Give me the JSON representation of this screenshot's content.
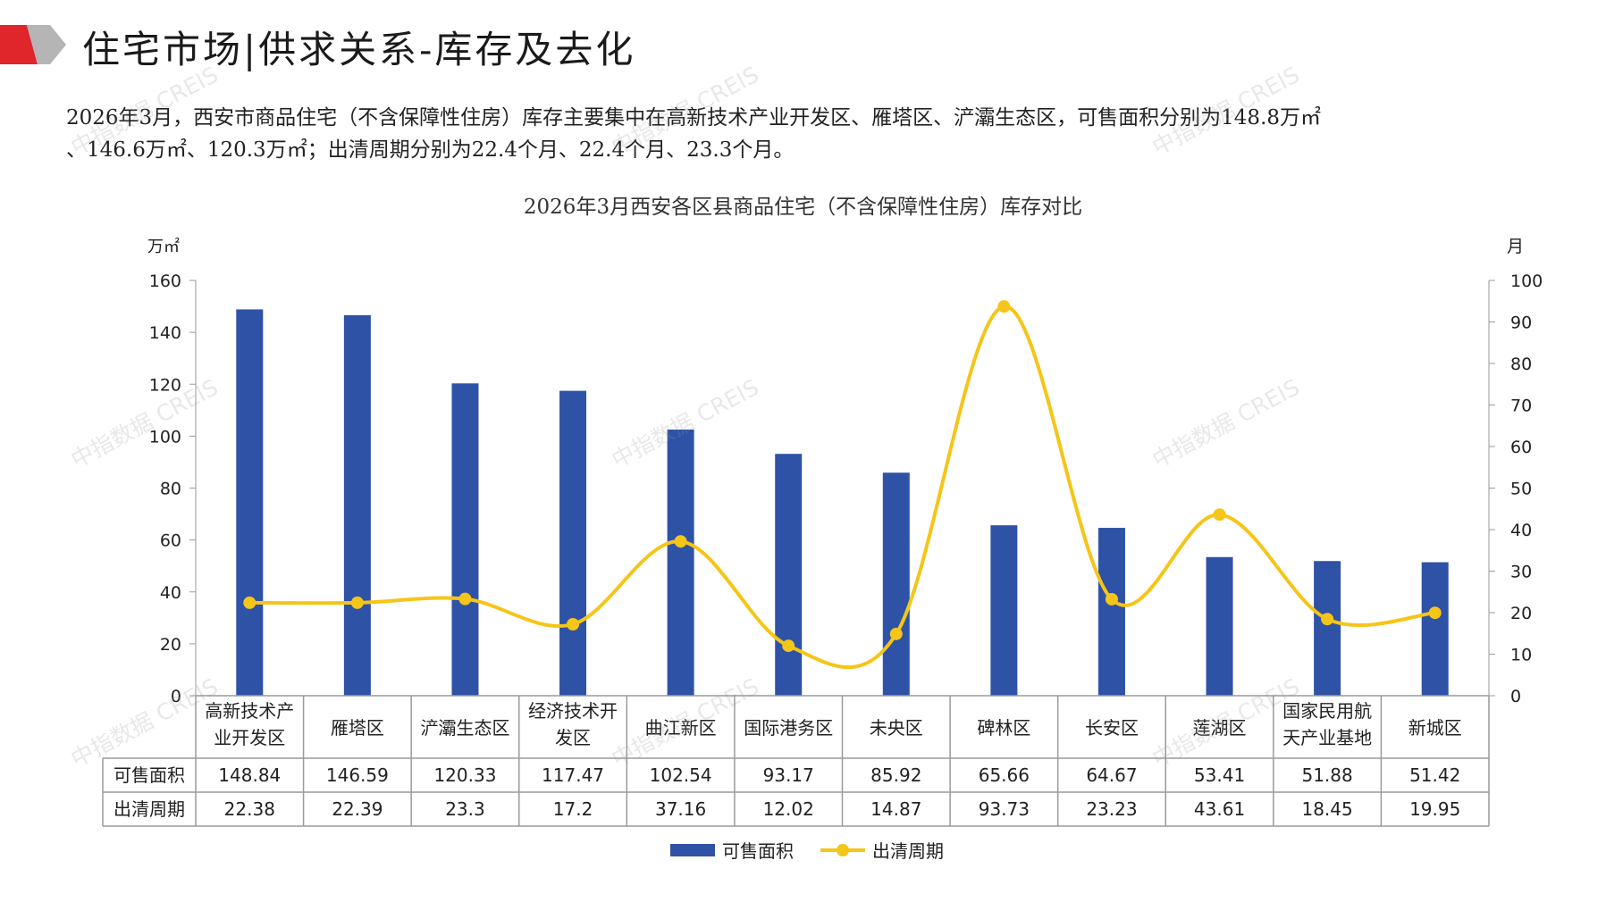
{
  "page": {
    "title": "住宅市场|供求关系-库存及去化",
    "summary_line1": "2026年3月，西安市商品住宅（不含保障性住房）库存主要集中在高新技术产业开发区、雁塔区、浐灞生态区，可售面积分别为148.8万㎡",
    "summary_line2": "、146.6万㎡、120.3万㎡；出清周期分别为22.4个月、22.4个月、23.3个月。",
    "watermark": "中指数据 CREIS"
  },
  "colors": {
    "bar": "#2e52a5",
    "line": "#f5c518",
    "grid_border": "#9a9a9a",
    "logo_red": "#e0262b",
    "logo_gray": "#b5b5b5"
  },
  "chart_data": {
    "type": "bar+line",
    "title": "2026年3月西安各区县商品住宅（不含保障性住房）库存对比",
    "ylabel_left": "万㎡",
    "ylabel_right": "月",
    "ylim_left": [
      0,
      160
    ],
    "yticks_left": [
      0,
      20,
      40,
      60,
      80,
      100,
      120,
      140,
      160
    ],
    "ylim_right": [
      0,
      100
    ],
    "yticks_right": [
      0,
      10,
      20,
      30,
      40,
      50,
      60,
      70,
      80,
      90,
      100
    ],
    "categories": [
      [
        "高新技术产",
        "业开发区"
      ],
      [
        "雁塔区"
      ],
      [
        "浐灞生态区"
      ],
      [
        "经济技术开",
        "发区"
      ],
      [
        "曲江新区"
      ],
      [
        "国际港务区"
      ],
      [
        "未央区"
      ],
      [
        "碑林区"
      ],
      [
        "长安区"
      ],
      [
        "莲湖区"
      ],
      [
        "国家民用航",
        "天产业基地"
      ],
      [
        "新城区"
      ]
    ],
    "series": [
      {
        "name": "可售面积",
        "type": "bar",
        "axis": "left",
        "values": [
          148.84,
          146.59,
          120.33,
          117.47,
          102.54,
          93.17,
          85.92,
          65.66,
          64.67,
          53.41,
          51.88,
          51.42
        ],
        "labels": [
          "148.84",
          "146.59",
          "120.33",
          "117.47",
          "102.54",
          "93.17",
          "85.92",
          "65.66",
          "64.67",
          "53.41",
          "51.88",
          "51.42"
        ]
      },
      {
        "name": "出清周期",
        "type": "line",
        "axis": "right",
        "values": [
          22.38,
          22.39,
          23.3,
          17.2,
          37.16,
          12.02,
          14.87,
          93.73,
          23.23,
          43.61,
          18.45,
          19.95
        ],
        "labels": [
          "22.38",
          "22.39",
          "23.3",
          "17.2",
          "37.16",
          "12.02",
          "14.87",
          "93.73",
          "23.23",
          "43.61",
          "18.45",
          "19.95"
        ]
      }
    ],
    "legend_position": "bottom",
    "data_table": true
  }
}
